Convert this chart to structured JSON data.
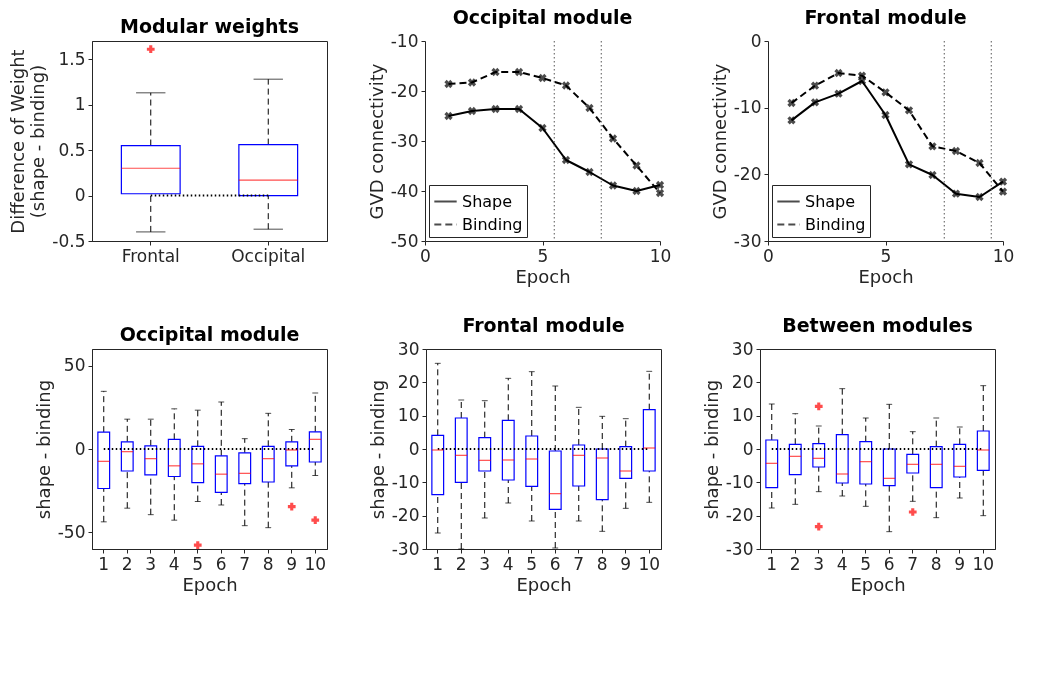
{
  "chart_data": [
    {
      "type": "box",
      "title": "Modular weights",
      "ylabel": "Difference of Weight\n(shape - binding)",
      "categories": [
        "Frontal",
        "Occipital"
      ],
      "ylim": [
        -0.5,
        1.7
      ],
      "yticks": [
        -0.5,
        0,
        0.5,
        1,
        1.5
      ],
      "grid": false,
      "series": [
        {
          "color": "#0000ff",
          "boxes": [
            {
              "low": -0.4,
              "q1": 0.02,
              "median": 0.3,
              "q3": 0.55,
              "high": 1.13,
              "outliers": [
                1.61
              ]
            },
            {
              "low": -0.37,
              "q1": 0.0,
              "median": 0.17,
              "q3": 0.56,
              "high": 1.28
            }
          ]
        }
      ],
      "ref_lines": [
        {
          "axis": "y",
          "value": 0,
          "line_style": "dotted",
          "color": "#000000"
        }
      ]
    },
    {
      "type": "line",
      "title": "Occipital module",
      "xlabel": "Epoch",
      "ylabel": "GVD connectivity",
      "x": [
        1,
        2,
        3,
        4,
        5,
        6,
        7,
        8,
        9,
        10
      ],
      "xlim": [
        0,
        10
      ],
      "xticks": [
        0,
        5,
        10
      ],
      "ylim": [
        -50,
        -10
      ],
      "yticks": [
        -50,
        -40,
        -30,
        -20,
        -10
      ],
      "grid": false,
      "legend": "bottom left",
      "marker": "cross",
      "series": [
        {
          "name": "Shape",
          "color": "#000000",
          "line_style": "solid",
          "values": [
            -25,
            -24,
            -23.6,
            -23.6,
            -27.4,
            -33.8,
            -36.2,
            -38.9,
            -40,
            -38.8
          ]
        },
        {
          "name": "Binding",
          "color": "#000000",
          "line_style": "dashed",
          "values": [
            -18.6,
            -18.3,
            -16.2,
            -16.2,
            -17.4,
            -18.9,
            -23.4,
            -29.5,
            -34.9,
            -40.4
          ]
        }
      ],
      "ref_lines": [
        {
          "axis": "x",
          "value": 5.5,
          "line_style": "dotted",
          "color": "#555555"
        },
        {
          "axis": "x",
          "value": 7.5,
          "line_style": "dotted",
          "color": "#555555"
        }
      ]
    },
    {
      "type": "line",
      "title": "Frontal module",
      "xlabel": "Epoch",
      "ylabel": "GVD connectivity",
      "x": [
        1,
        2,
        3,
        4,
        5,
        6,
        7,
        8,
        9,
        10
      ],
      "xlim": [
        0,
        10
      ],
      "xticks": [
        0,
        5,
        10
      ],
      "ylim": [
        -30,
        0
      ],
      "yticks": [
        -30,
        -20,
        -10,
        0
      ],
      "grid": false,
      "legend": "bottom left",
      "marker": "cross",
      "series": [
        {
          "name": "Shape",
          "color": "#000000",
          "line_style": "solid",
          "values": [
            -11.9,
            -9.2,
            -7.9,
            -6,
            -11.1,
            -18.5,
            -20.1,
            -22.9,
            -23.4,
            -21.1
          ]
        },
        {
          "name": "Binding",
          "color": "#000000",
          "line_style": "dashed",
          "values": [
            -9.3,
            -6.7,
            -4.8,
            -5.2,
            -7.7,
            -10.4,
            -15.8,
            -16.5,
            -18.3,
            -22.6
          ]
        }
      ],
      "ref_lines": [
        {
          "axis": "x",
          "value": 7.5,
          "line_style": "dotted",
          "color": "#555555"
        },
        {
          "axis": "x",
          "value": 9.5,
          "line_style": "dotted",
          "color": "#555555"
        }
      ]
    },
    {
      "type": "box",
      "title": "Occipital module",
      "xlabel": "Epoch",
      "ylabel": "shape - binding",
      "categories": [
        "1",
        "2",
        "3",
        "4",
        "5",
        "6",
        "7",
        "8",
        "9",
        "10"
      ],
      "ylim": [
        -60,
        60
      ],
      "yticks": [
        -50,
        0,
        50
      ],
      "grid": false,
      "series": [
        {
          "color": "#0000ff",
          "boxes": [
            {
              "low": -43.7,
              "q1": -23.7,
              "median": -7.4,
              "q3": 10.1,
              "high": 34.6
            },
            {
              "low": -35.5,
              "q1": -13.2,
              "median": -1.6,
              "q3": 4.3,
              "high": 17.9
            },
            {
              "low": -39.4,
              "q1": -15.5,
              "median": -5.8,
              "q3": 1.9,
              "high": 17.9
            },
            {
              "low": -42.7,
              "q1": -16.5,
              "median": -10.1,
              "q3": 5.8,
              "high": 24.1
            },
            {
              "low": -31.5,
              "q1": -20.2,
              "median": -8.9,
              "q3": 1.6,
              "high": 23.3,
              "outliers": [
                -57.7
              ]
            },
            {
              "low": -33.6,
              "q1": -26,
              "median": -15.1,
              "q3": -4.1,
              "high": 28.2
            },
            {
              "low": -46,
              "q1": -20.8,
              "median": -14.6,
              "q3": -2.3,
              "high": 6.2
            },
            {
              "low": -47.2,
              "q1": -19.8,
              "median": -5.8,
              "q3": 1.6,
              "high": 21.4
            },
            {
              "low": -23.3,
              "q1": -10.1,
              "median": -0.6,
              "q3": 4.3,
              "high": 11.7,
              "outliers": [
                -34.6
              ]
            },
            {
              "low": -15.9,
              "q1": -7.8,
              "median": 5.8,
              "q3": 10.3,
              "high": 33.6,
              "outliers": [
                -42.7
              ]
            }
          ]
        }
      ],
      "ref_lines": [
        {
          "axis": "y",
          "value": 0,
          "line_style": "dotted",
          "color": "#000000"
        }
      ]
    },
    {
      "type": "box",
      "title": "Frontal module",
      "xlabel": "Epoch",
      "ylabel": "shape - binding",
      "categories": [
        "1",
        "2",
        "3",
        "4",
        "5",
        "6",
        "7",
        "8",
        "9",
        "10"
      ],
      "ylim": [
        -30,
        30
      ],
      "yticks": [
        -30,
        -20,
        -10,
        0,
        10,
        20,
        30
      ],
      "grid": false,
      "series": [
        {
          "color": "#0000ff",
          "boxes": [
            {
              "low": -25.2,
              "q1": -13.7,
              "median": -0.3,
              "q3": 4.1,
              "high": 25.7
            },
            {
              "low": -30,
              "q1": -10,
              "median": -1.9,
              "q3": 9.3,
              "high": 14.7
            },
            {
              "low": -20.7,
              "q1": -6.6,
              "median": -3.4,
              "q3": 3.4,
              "high": 14.5
            },
            {
              "low": -16.2,
              "q1": -9.3,
              "median": -3.3,
              "q3": 8.6,
              "high": 21.2
            },
            {
              "low": -21.6,
              "q1": -11.2,
              "median": -3,
              "q3": 3.9,
              "high": 23.2
            },
            {
              "low": -29.7,
              "q1": -18.1,
              "median": -13.4,
              "q3": -0.6,
              "high": 18.9
            },
            {
              "low": -21.6,
              "q1": -11.1,
              "median": -1.9,
              "q3": 1.2,
              "high": 12.5
            },
            {
              "low": -24.7,
              "q1": -15.2,
              "median": -2.7,
              "q3": 0,
              "high": 9.8
            },
            {
              "low": -17.8,
              "q1": -8.8,
              "median": -6.6,
              "q3": 0.7,
              "high": 9.1
            },
            {
              "low": -16,
              "q1": -6.6,
              "median": 0.3,
              "q3": 11.8,
              "high": 23.3
            }
          ]
        }
      ],
      "ref_lines": [
        {
          "axis": "y",
          "value": 0,
          "line_style": "dotted",
          "color": "#000000"
        }
      ]
    },
    {
      "type": "box",
      "title": "Between modules",
      "xlabel": "Epoch",
      "ylabel": "shape - binding",
      "categories": [
        "1",
        "2",
        "3",
        "4",
        "5",
        "6",
        "7",
        "8",
        "9",
        "10"
      ],
      "ylim": [
        -30,
        30
      ],
      "yticks": [
        -30,
        -20,
        -10,
        0,
        10,
        20,
        30
      ],
      "grid": false,
      "series": [
        {
          "color": "#0000ff",
          "boxes": [
            {
              "low": -17.7,
              "q1": -11.6,
              "median": -4.3,
              "q3": 2.7,
              "high": 13.5
            },
            {
              "low": -16.6,
              "q1": -7.7,
              "median": -2.2,
              "q3": 1.4,
              "high": 10.6
            },
            {
              "low": -12.8,
              "q1": -5.4,
              "median": -2.8,
              "q3": 1.6,
              "high": 6.9,
              "outliers": [
                12.8,
                -23.3
              ]
            },
            {
              "low": -14.1,
              "q1": -10.2,
              "median": -7.5,
              "q3": 4.3,
              "high": 18.1
            },
            {
              "low": -17.2,
              "q1": -10.5,
              "median": -3.8,
              "q3": 2.2,
              "high": 9.3
            },
            {
              "low": -24.8,
              "q1": -11,
              "median": -8.8,
              "q3": 0,
              "high": 13.4
            },
            {
              "low": -15.7,
              "q1": -7.2,
              "median": -4.6,
              "q3": -1.6,
              "high": 5.2,
              "outliers": [
                -18.9
              ]
            },
            {
              "low": -20.6,
              "q1": -11.6,
              "median": -4.6,
              "q3": 0.7,
              "high": 9.3
            },
            {
              "low": -14.7,
              "q1": -8.4,
              "median": -5.2,
              "q3": 1.4,
              "high": 6.6
            },
            {
              "low": -20,
              "q1": -6.4,
              "median": -0.3,
              "q3": 5.4,
              "high": 19
            }
          ]
        }
      ],
      "ref_lines": [
        {
          "axis": "y",
          "value": 0,
          "line_style": "dotted",
          "color": "#000000"
        }
      ]
    }
  ]
}
